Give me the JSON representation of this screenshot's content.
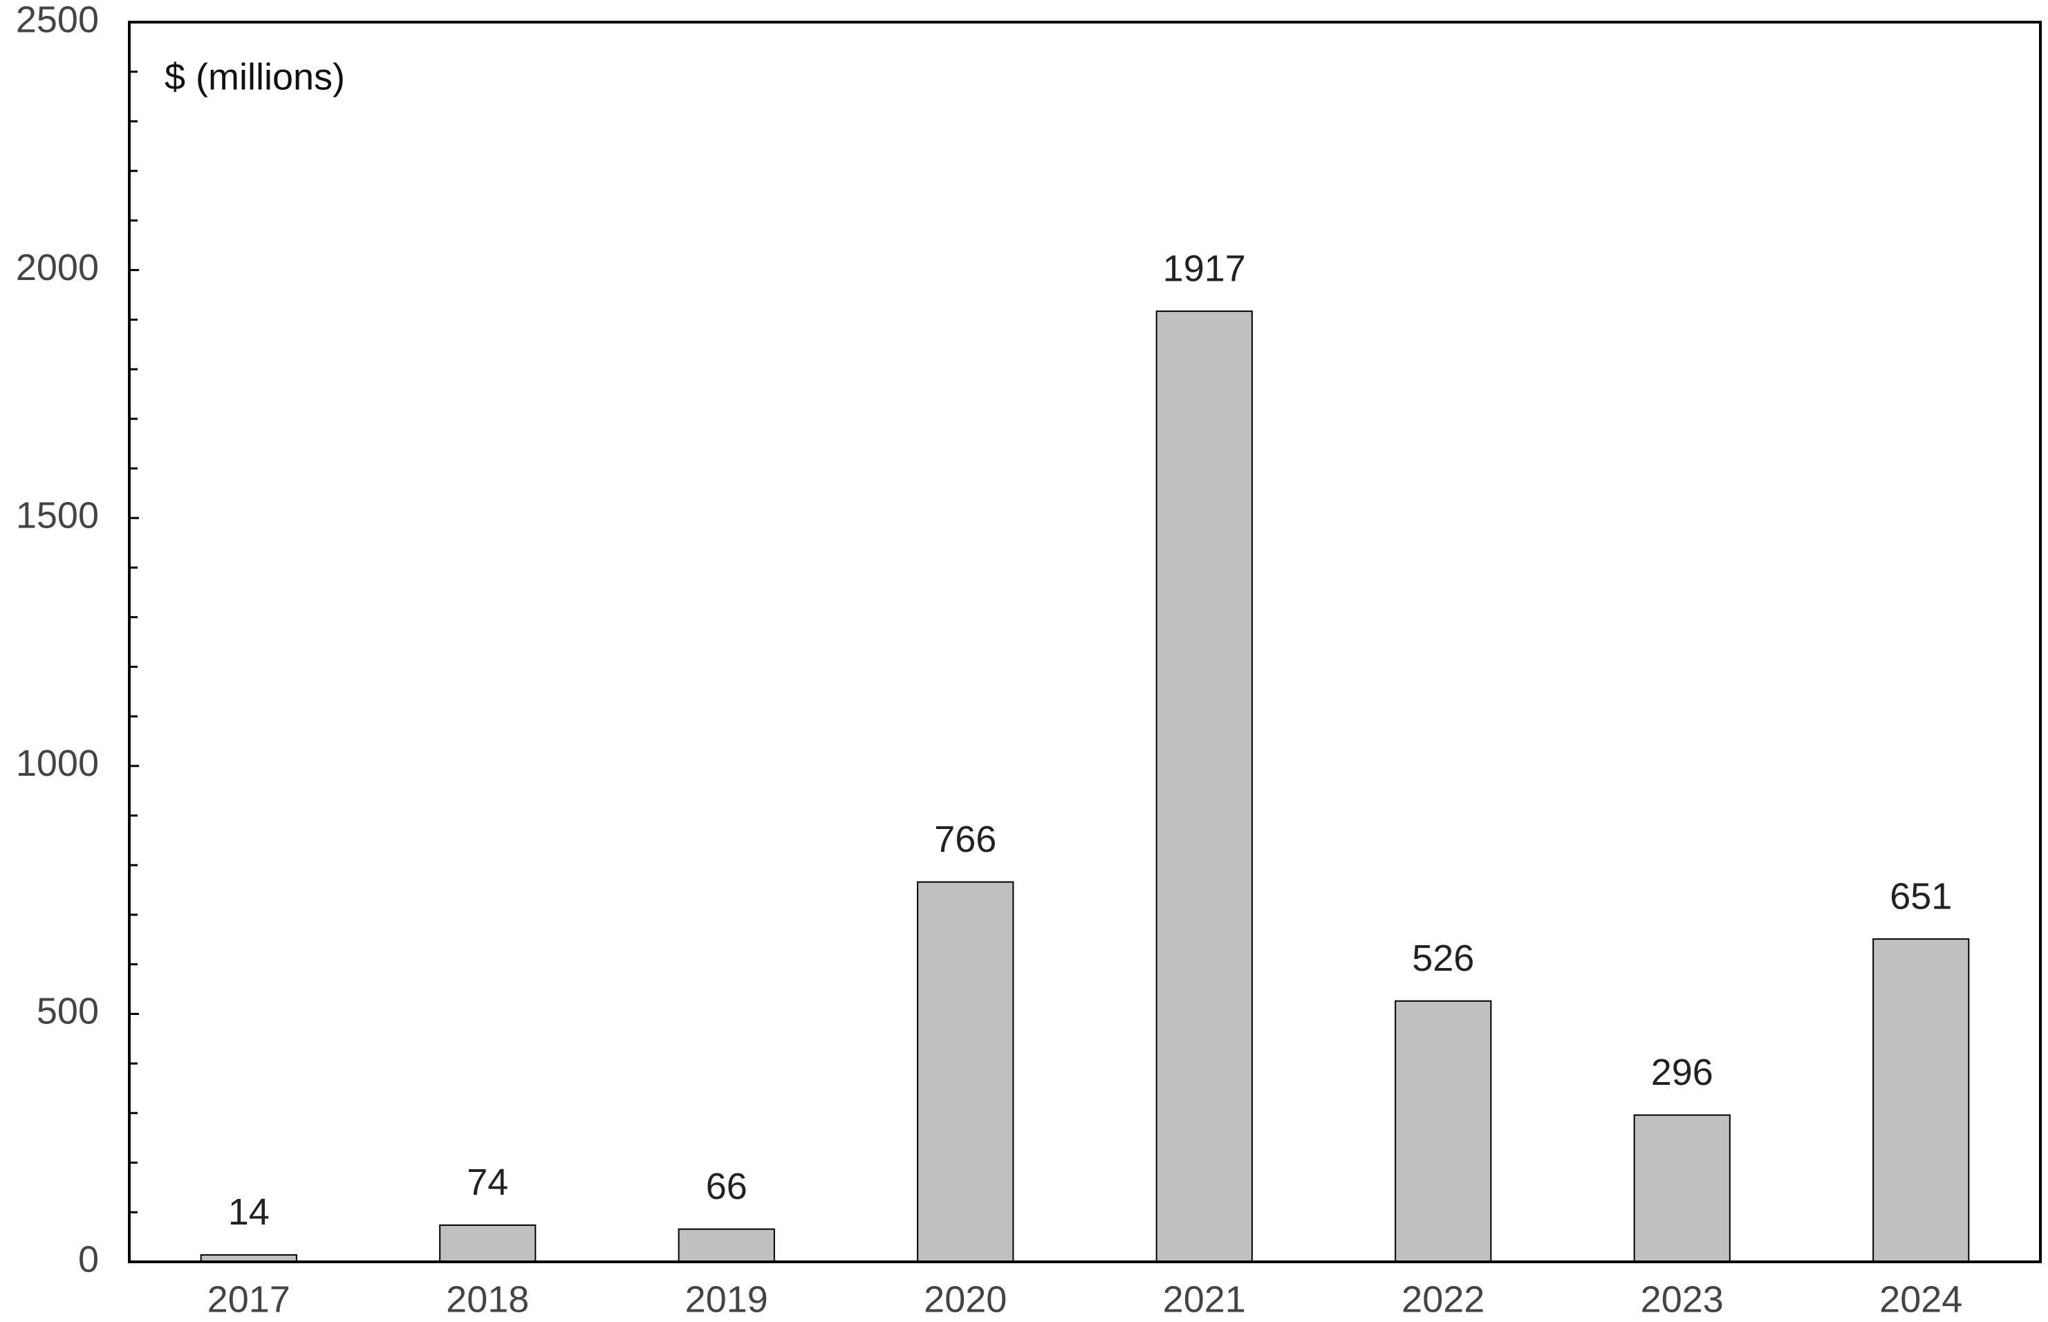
{
  "chart_data": {
    "type": "bar",
    "y_label": "$ (millions)",
    "categories": [
      "2017",
      "2018",
      "2019",
      "2020",
      "2021",
      "2022",
      "2023",
      "2024"
    ],
    "values": [
      14,
      74,
      66,
      766,
      1917,
      526,
      296,
      651
    ],
    "color": "#c0c0c0",
    "ylim": [
      0,
      2500
    ],
    "yticks": [
      0,
      500,
      1000,
      1500,
      2000,
      2500
    ],
    "yminorticks": [
      100,
      200,
      300,
      400,
      600,
      700,
      800,
      900,
      1100,
      1200,
      1300,
      1400,
      1600,
      1700,
      1800,
      1900,
      2100,
      2200,
      2300,
      2400
    ],
    "grid": false
  }
}
